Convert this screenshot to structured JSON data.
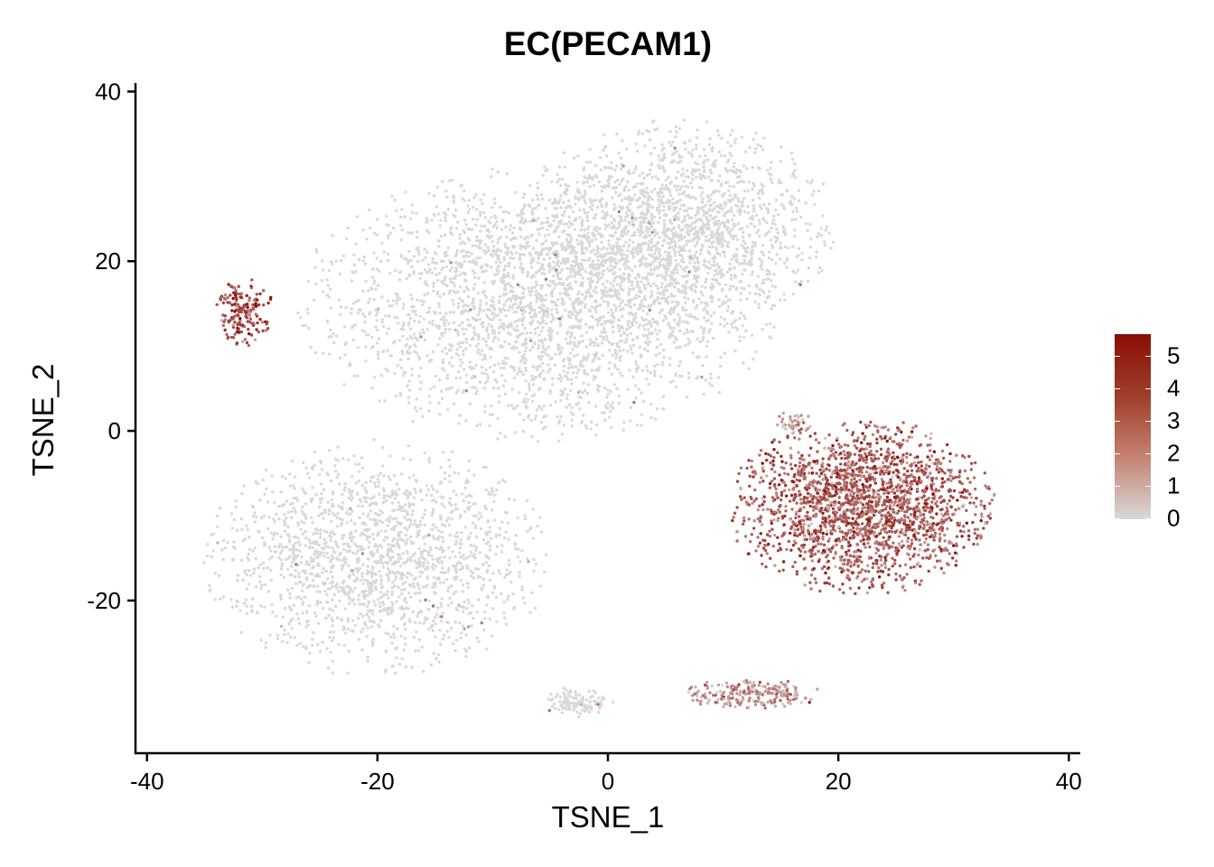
{
  "chart_data": {
    "type": "scatter",
    "title": "EC(PECAM1)",
    "xlabel": "TSNE_1",
    "ylabel": "TSNE_2",
    "xlim": [
      -41,
      41
    ],
    "ylim": [
      -38,
      41
    ],
    "x_ticks": [
      "-40",
      "-20",
      "0",
      "20",
      "40"
    ],
    "y_ticks": [
      "40",
      "20",
      "0",
      "-20"
    ],
    "x_tick_values": [
      -40,
      -20,
      0,
      20,
      40
    ],
    "y_tick_values": [
      40,
      20,
      0,
      -20
    ],
    "grid": false,
    "legend": {
      "position": "right",
      "min": 0,
      "max": 5.6,
      "ticks": [
        "5",
        "4",
        "3",
        "2",
        "1",
        "0"
      ],
      "colors": [
        "#d9d9d9",
        "#8b0d04"
      ]
    },
    "clusters": [
      {
        "center": [
          -6,
          15
        ],
        "spread": [
          18,
          14
        ],
        "expression": 0,
        "n": 2600
      },
      {
        "center": [
          6,
          24
        ],
        "spread": [
          12,
          11
        ],
        "expression": 0,
        "n": 1600
      },
      {
        "center": [
          -20,
          -15
        ],
        "spread": [
          13,
          12
        ],
        "expression": 0,
        "n": 1700
      },
      {
        "center": [
          -31.5,
          14
        ],
        "spread": [
          2.2,
          3.5
        ],
        "expression": 4.0,
        "n": 160
      },
      {
        "center": [
          22,
          -9
        ],
        "spread": [
          10,
          9
        ],
        "expression": 3.3,
        "n": 2000
      },
      {
        "center": [
          12.5,
          -31
        ],
        "spread": [
          5.5,
          1.5
        ],
        "expression": 1.8,
        "n": 220
      },
      {
        "center": [
          -3,
          -32
        ],
        "spread": [
          3,
          1.5
        ],
        "expression": 0,
        "n": 120
      },
      {
        "center": [
          16,
          1
        ],
        "spread": [
          1.5,
          1.2
        ],
        "expression": 1.6,
        "n": 40
      }
    ]
  }
}
